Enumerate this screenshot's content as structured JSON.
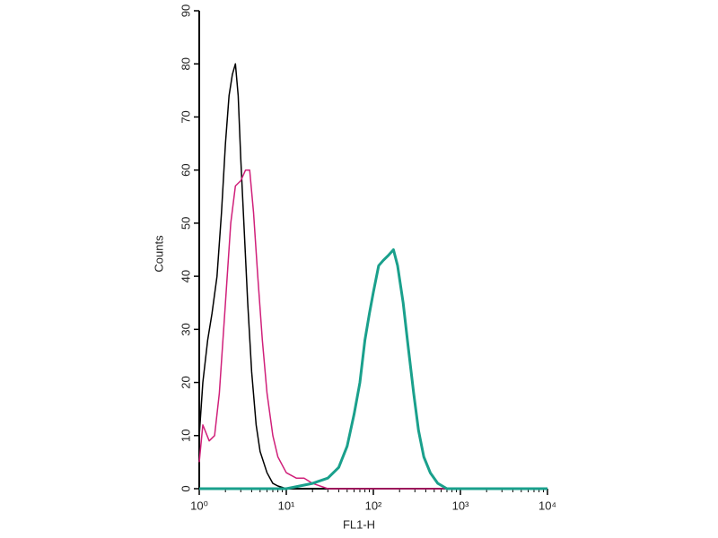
{
  "chart_data": {
    "type": "line",
    "x_label": "FL1-H",
    "y_label": "Counts",
    "xscale": "log",
    "xlim": [
      1,
      10000
    ],
    "ylim": [
      0,
      90
    ],
    "xticks": [
      {
        "value": 1,
        "label": "10⁰"
      },
      {
        "value": 10,
        "label": "10¹"
      },
      {
        "value": 100,
        "label": "10²"
      },
      {
        "value": 1000,
        "label": "10³"
      },
      {
        "value": 10000,
        "label": "10⁴"
      }
    ],
    "yticks": [
      0,
      10,
      20,
      30,
      40,
      50,
      60,
      70,
      80,
      90
    ],
    "series": [
      {
        "color": "#000000",
        "x": [
          1,
          1.1,
          1.25,
          1.4,
          1.6,
          1.8,
          2.0,
          2.2,
          2.4,
          2.6,
          2.8,
          3.0,
          3.3,
          3.6,
          4.0,
          4.5,
          5,
          6,
          7,
          8,
          10,
          20,
          100,
          1000,
          10000
        ],
        "values": [
          10,
          20,
          28,
          33,
          40,
          52,
          65,
          74,
          78,
          80,
          74,
          62,
          48,
          35,
          22,
          12,
          7,
          3,
          1,
          0.5,
          0,
          0,
          0,
          0,
          0
        ]
      },
      {
        "color": "#d0207a",
        "x": [
          1,
          1.1,
          1.3,
          1.5,
          1.7,
          2.0,
          2.3,
          2.6,
          3.0,
          3.4,
          3.8,
          4.2,
          4.7,
          5.3,
          6,
          7,
          8,
          10,
          13,
          16,
          20,
          30,
          100,
          10000
        ],
        "values": [
          5,
          12,
          9,
          10,
          18,
          35,
          50,
          57,
          58,
          60,
          60,
          52,
          40,
          28,
          18,
          10,
          6,
          3,
          2,
          2,
          1,
          0,
          0,
          0
        ]
      },
      {
        "color": "#1aa08c",
        "x": [
          1,
          10,
          20,
          30,
          40,
          50,
          60,
          70,
          80,
          90,
          100,
          115,
          130,
          150,
          170,
          190,
          220,
          250,
          290,
          330,
          380,
          450,
          550,
          700,
          2000,
          10000
        ],
        "values": [
          0,
          0,
          1,
          2,
          4,
          8,
          14,
          20,
          28,
          33,
          37,
          42,
          43,
          44,
          45,
          42,
          35,
          27,
          18,
          11,
          6,
          3,
          1,
          0,
          0,
          0
        ]
      }
    ]
  }
}
